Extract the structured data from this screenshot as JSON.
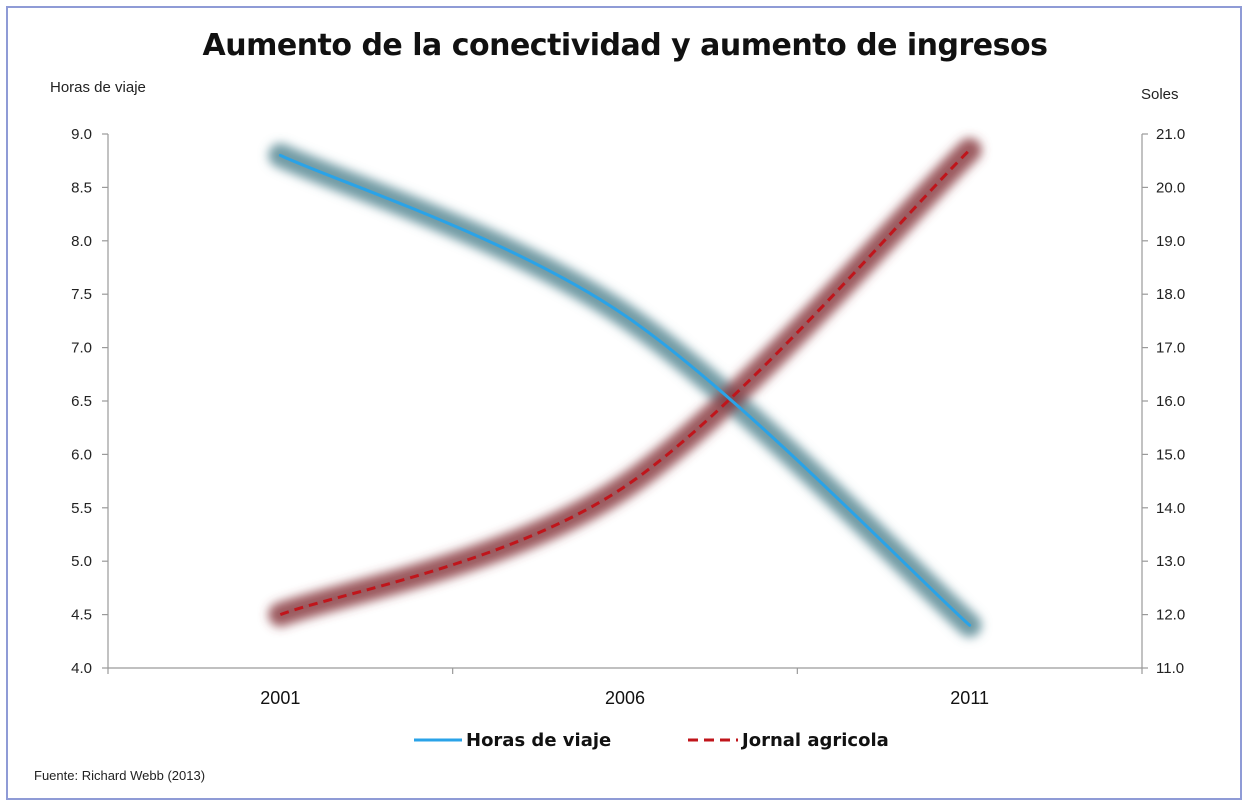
{
  "chart_data": {
    "type": "line",
    "title": "Aumento de la conectividad y aumento de ingresos",
    "ylabel_left": "Horas de viaje",
    "ylabel_right": "Soles",
    "x": [
      2001,
      2006,
      2011
    ],
    "x_tick_labels": [
      "2001",
      "2006",
      "2011"
    ],
    "xlim": [
      1998.5,
      2013.5
    ],
    "ylim_left": [
      4.0,
      9.0
    ],
    "ylim_right": [
      11.0,
      21.0
    ],
    "y_ticks_left": [
      "4.0",
      "4.5",
      "5.0",
      "5.5",
      "6.0",
      "6.5",
      "7.0",
      "7.5",
      "8.0",
      "8.5",
      "9.0"
    ],
    "y_ticks_right": [
      "11.0",
      "12.0",
      "13.0",
      "14.0",
      "15.0",
      "16.0",
      "17.0",
      "18.0",
      "19.0",
      "20.0",
      "21.0"
    ],
    "grid": false,
    "legend_position": "bottom",
    "series": [
      {
        "name": "Horas de viaje",
        "axis": "left",
        "color": "#2aa3e8",
        "glow": "#5a8a95",
        "style": "solid",
        "values": [
          8.8,
          7.3,
          4.4
        ]
      },
      {
        "name": "Jornal agricola",
        "axis": "right",
        "color": "#c0151b",
        "glow": "#8a3c42",
        "style": "dashed",
        "values": [
          12.0,
          14.4,
          20.7
        ]
      }
    ]
  },
  "source": "Fuente: Richard Webb (2013)"
}
